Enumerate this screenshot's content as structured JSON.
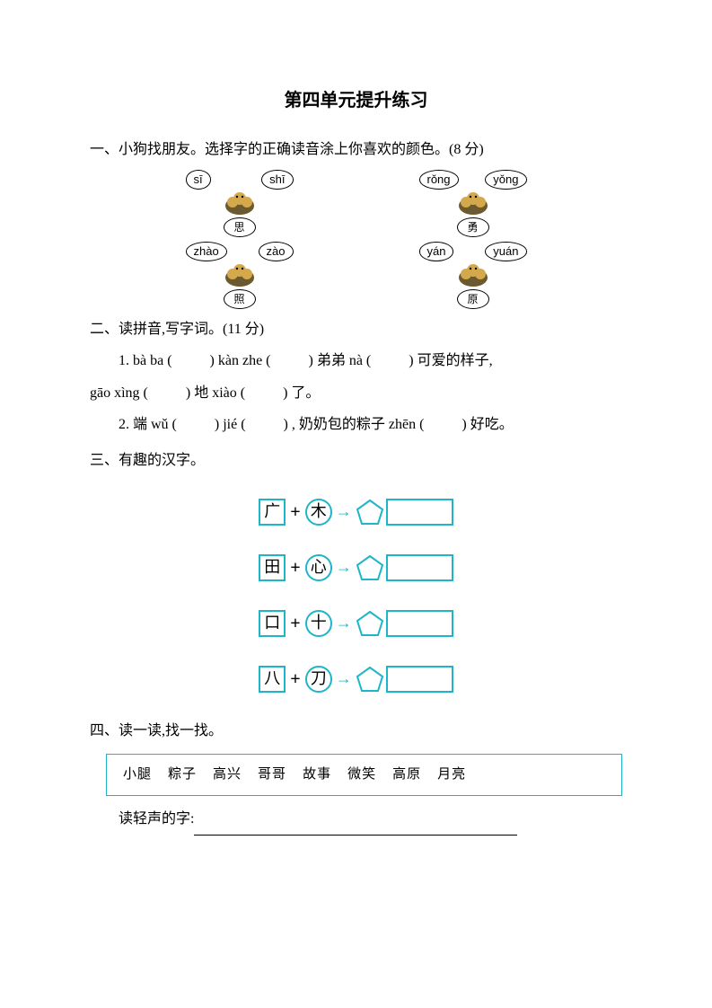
{
  "title": "第四单元提升练习",
  "q1": {
    "heading": "一、小狗找朋友。选择字的正确读音涂上你喜欢的颜色。(8 分)",
    "items": [
      {
        "left": "sī",
        "right": "shī",
        "char": "思"
      },
      {
        "left": "rǒng",
        "right": "yǒng",
        "char": "勇"
      },
      {
        "left": "zhào",
        "right": "zào",
        "char": "照"
      },
      {
        "left": "yán",
        "right": "yuán",
        "char": "原"
      }
    ]
  },
  "q2": {
    "heading": "二、读拼音,写字词。(11 分)",
    "line1_parts": [
      "1. bà ba (",
      ") kàn zhe (",
      ") 弟弟 nà (",
      ") 可爱的样子,"
    ],
    "line2_parts": [
      "gāo xìng (",
      ") 地 xiào (",
      ") 了。"
    ],
    "line3_parts": [
      "2. 端 wǔ (",
      ") jié (",
      ") , 奶奶包的粽子 zhēn (",
      ") 好吃。"
    ]
  },
  "q3": {
    "heading": "三、有趣的汉字。",
    "rows": [
      {
        "a": "广",
        "b": "木"
      },
      {
        "a": "田",
        "b": "心"
      },
      {
        "a": "口",
        "b": "十"
      },
      {
        "a": "八",
        "b": "刀"
      }
    ]
  },
  "q4": {
    "heading": "四、读一读,找一找。",
    "words": [
      "小腿",
      "粽子",
      "高兴",
      "哥哥",
      "故事",
      "微笑",
      "高原",
      "月亮"
    ],
    "prompt": "读轻声的字:"
  },
  "colors": {
    "accent": "#1fb5c9",
    "puppy_body": "#6b5a2f",
    "puppy_patch": "#d4a84b"
  }
}
